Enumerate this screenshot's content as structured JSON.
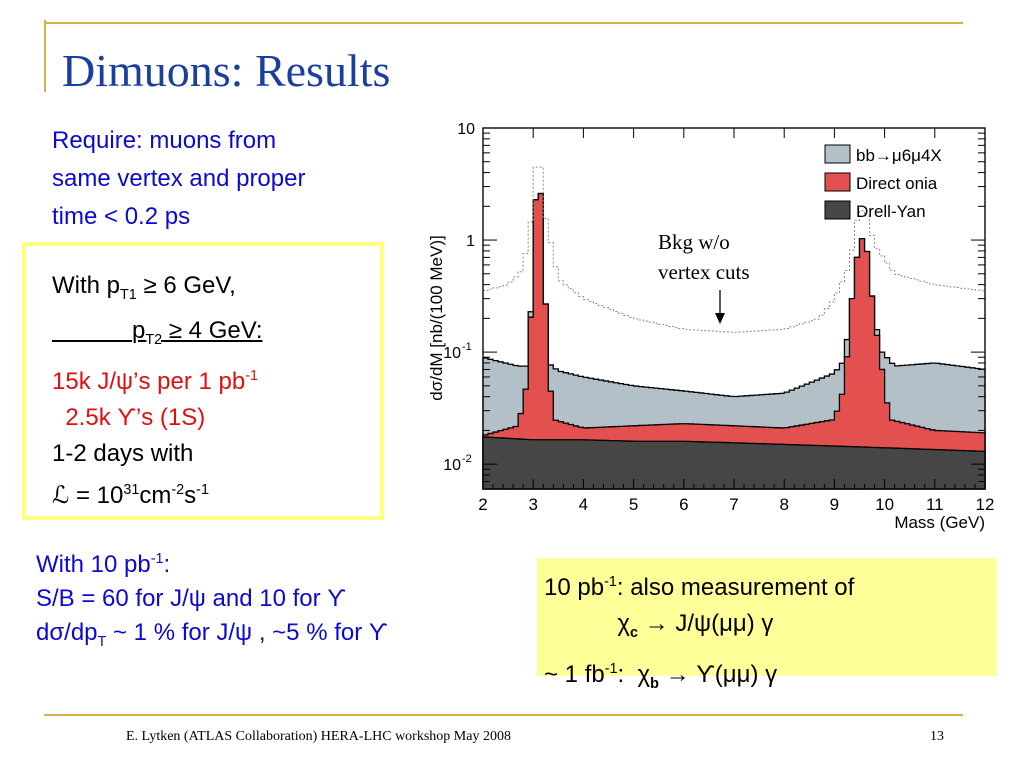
{
  "title": "Dimuons: Results",
  "require_lines": [
    "Require: muons from",
    "same vertex and proper",
    "time < 0.2 ps"
  ],
  "box": {
    "l1_a": "With p",
    "l1_sub": "T1",
    "l1_b": " ≥ 6 GeV,",
    "l2_pad": "            ",
    "l2_a": "p",
    "l2_sub": "T2",
    "l2_b": " ≥ 4 GeV:",
    "l3_a": "15k J/ψ’s per 1 pb",
    "l3_sup": "-1",
    "l4": "  2.5k ϒ’s (1S)",
    "l5": "1-2 days with",
    "l6_a": "ℒ = 10",
    "l6_sup1": "31",
    "l6_b": "cm",
    "l6_sup2": "-2",
    "l6_c": "s",
    "l6_sup3": "-1"
  },
  "with10": {
    "l1_a": "With 10 pb",
    "l1_sup": "-1",
    "l1_b": ":",
    "l2": "S/B = 60 for J/ψ and 10 for ϒ",
    "l3_a": "dσ/dp",
    "l3_sub": "T",
    "l3_b": " ~ 1 % for J/ψ , ~5 % for ϒ"
  },
  "measurement": {
    "l1_a": "10 pb",
    "l1_sup": "-1",
    "l1_b": ": also measurement of",
    "l2_pad": "           ",
    "l2_a": "χ",
    "l2_sub": "c",
    "l2_b": " → J/ψ(μμ) γ",
    "l3_a": "~ 1 fb",
    "l3_sup": "-1",
    "l3_b": ":  χ",
    "l3_sub": "b",
    "l3_c": " → ϒ(μμ) γ"
  },
  "footer": {
    "left": "E. Lytken  (ATLAS Collaboration) HERA-LHC workshop May 2008",
    "page": "13"
  },
  "colors": {
    "bb": "#b4c0c8",
    "onia": "#e35050",
    "drell_yan": "#464646",
    "title": "#1b3f9c",
    "accent": "#d7b04a"
  },
  "chart_data": {
    "type": "bar",
    "xlabel": "Mass (GeV)",
    "ylabel": "dσ/dM [nb/(100 MeV)]",
    "xlim": [
      2,
      12
    ],
    "ylim": [
      0.006,
      10
    ],
    "yscale": "log",
    "x_ticks": [
      "2",
      "3",
      "4",
      "5",
      "6",
      "7",
      "8",
      "9",
      "10",
      "11",
      "12"
    ],
    "y_ticks": [
      {
        "value": 10,
        "base": "10",
        "exp": ""
      },
      {
        "value": 1,
        "base": "1",
        "exp": ""
      },
      {
        "value": 0.1,
        "base": "10",
        "exp": "-1"
      },
      {
        "value": 0.01,
        "base": "10",
        "exp": "-2"
      }
    ],
    "legend": [
      "bb→μ6μ4X",
      "Direct onia",
      "Drell-Yan"
    ],
    "legend_position": "top-right",
    "annotation": "Bkg w/o vertex cuts",
    "bin_width": 0.1,
    "series": [
      {
        "name": "Drell-Yan",
        "points": [
          [
            2.0,
            0.0175
          ],
          [
            3.0,
            0.0165
          ],
          [
            4.0,
            0.0165
          ],
          [
            5.0,
            0.016
          ],
          [
            6.0,
            0.016
          ],
          [
            7.0,
            0.0155
          ],
          [
            8.0,
            0.015
          ],
          [
            9.0,
            0.0145
          ],
          [
            10.0,
            0.014
          ],
          [
            11.0,
            0.0135
          ],
          [
            12.0,
            0.013
          ]
        ]
      },
      {
        "name": "Direct onia",
        "points": [
          [
            2.0,
            0.018
          ],
          [
            2.7,
            0.022
          ],
          [
            2.9,
            0.06
          ],
          [
            3.0,
            0.7
          ],
          [
            3.1,
            7.5
          ],
          [
            3.2,
            0.9
          ],
          [
            3.3,
            0.08
          ],
          [
            3.4,
            0.025
          ],
          [
            4.0,
            0.021
          ],
          [
            5.0,
            0.022
          ],
          [
            6.0,
            0.023
          ],
          [
            7.0,
            0.022
          ],
          [
            8.0,
            0.021
          ],
          [
            9.0,
            0.025
          ],
          [
            9.2,
            0.05
          ],
          [
            9.35,
            0.3
          ],
          [
            9.45,
            0.7
          ],
          [
            9.6,
            1.25
          ],
          [
            9.7,
            0.5
          ],
          [
            9.8,
            0.2
          ],
          [
            9.95,
            0.07
          ],
          [
            10.1,
            0.025
          ],
          [
            11.0,
            0.02
          ],
          [
            12.0,
            0.019
          ]
        ]
      },
      {
        "name": "bb→μ6μ4X",
        "points": [
          [
            2.0,
            0.09
          ],
          [
            2.2,
            0.085
          ],
          [
            2.7,
            0.075
          ],
          [
            2.9,
            0.075
          ],
          [
            3.0,
            0.7
          ],
          [
            3.1,
            7.5
          ],
          [
            3.2,
            0.9
          ],
          [
            3.3,
            0.08
          ],
          [
            3.5,
            0.068
          ],
          [
            4.0,
            0.06
          ],
          [
            5.0,
            0.05
          ],
          [
            6.0,
            0.045
          ],
          [
            7.0,
            0.04
          ],
          [
            8.0,
            0.043
          ],
          [
            9.0,
            0.065
          ],
          [
            9.2,
            0.085
          ],
          [
            9.35,
            0.3
          ],
          [
            9.45,
            0.7
          ],
          [
            9.6,
            1.25
          ],
          [
            9.7,
            0.5
          ],
          [
            9.8,
            0.2
          ],
          [
            9.95,
            0.1
          ],
          [
            10.2,
            0.075
          ],
          [
            11.0,
            0.08
          ],
          [
            12.0,
            0.07
          ]
        ]
      },
      {
        "name": "Bkg w/o vertex cuts",
        "points": [
          [
            2.0,
            0.35
          ],
          [
            2.5,
            0.4
          ],
          [
            2.8,
            0.55
          ],
          [
            3.0,
            2.0
          ],
          [
            3.1,
            10
          ],
          [
            3.2,
            2.0
          ],
          [
            3.5,
            0.45
          ],
          [
            4.0,
            0.3
          ],
          [
            5.0,
            0.2
          ],
          [
            6.0,
            0.16
          ],
          [
            7.0,
            0.15
          ],
          [
            8.0,
            0.16
          ],
          [
            8.7,
            0.2
          ],
          [
            9.0,
            0.3
          ],
          [
            9.3,
            0.6
          ],
          [
            9.45,
            1.5
          ],
          [
            9.6,
            2.0
          ],
          [
            9.8,
            0.9
          ],
          [
            10.2,
            0.5
          ],
          [
            11.0,
            0.4
          ],
          [
            12.0,
            0.35
          ]
        ]
      }
    ]
  }
}
